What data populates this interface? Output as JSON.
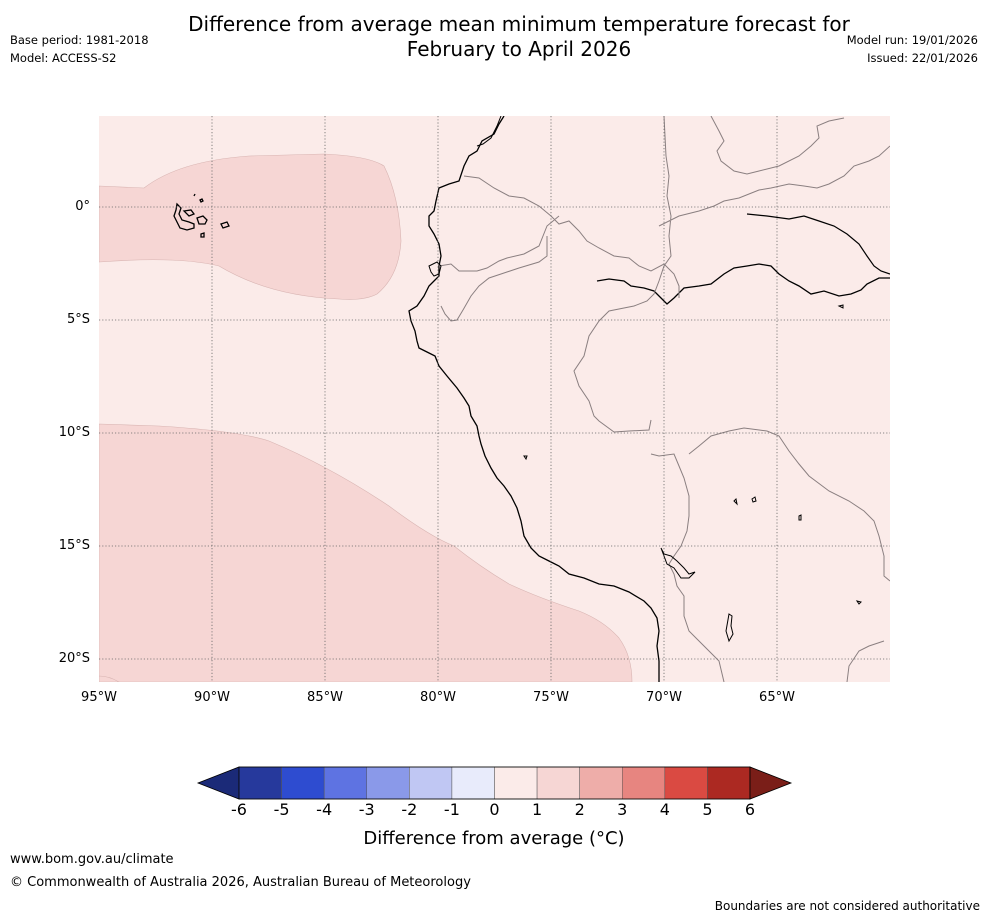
{
  "title_line1": "Difference from average mean minimum temperature forecast for",
  "title_line2": "February to April 2026",
  "meta": {
    "base_period": "Base period: 1981-2018",
    "model": "Model: ACCESS-S2",
    "model_run": "Model run: 19/01/2026",
    "issued": "Issued: 22/01/2026"
  },
  "map": {
    "lat_labels": [
      "0°",
      "5°S",
      "10°S",
      "15°S",
      "20°S"
    ],
    "lon_labels": [
      "95°W",
      "90°W",
      "85°W",
      "80°W",
      "75°W",
      "70°W",
      "65°W"
    ],
    "background_color": "#fbebe9",
    "anomaly_band_color": "#f6d6d4",
    "anomaly_band_value_range": "1 to 2",
    "coast_color": "#000000",
    "border_color": "#8a7f80"
  },
  "colorbar": {
    "ticks": [
      "-6",
      "-5",
      "-4",
      "-3",
      "-2",
      "-1",
      "0",
      "1",
      "2",
      "3",
      "4",
      "5",
      "6"
    ],
    "colors": [
      "#26399c",
      "#2e4cd0",
      "#5e73e2",
      "#8a99e9",
      "#c0c7f3",
      "#e8ebfb",
      "#fbebe9",
      "#f6d6d4",
      "#eeada9",
      "#e78580",
      "#da4a42",
      "#ac2922"
    ],
    "under_color": "#1b2a78",
    "over_color": "#7a1e18",
    "label": "Difference from average ($^\\circ$C)",
    "label_display": "Difference from average (°C)"
  },
  "footer": {
    "url": "www.bom.gov.au/climate",
    "copyright": "© Commonwealth of Australia 2026, Australian Bureau of Meteorology",
    "note": "Boundaries are not considered authoritative"
  }
}
